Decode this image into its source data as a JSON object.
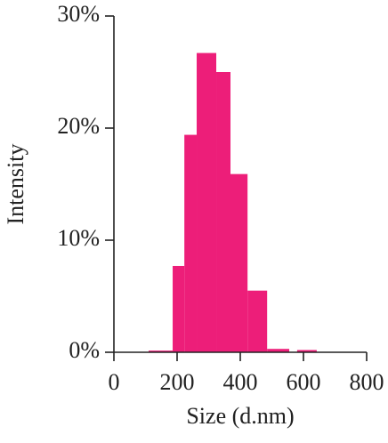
{
  "chart_data": {
    "type": "histogram",
    "xlabel": "Size (d.nm)",
    "ylabel": "Intensity",
    "bins": [
      110,
      186,
      223,
      262,
      324,
      369,
      423,
      485,
      555,
      580,
      642
    ],
    "counts": [
      0.15,
      7.7,
      19.4,
      26.7,
      25,
      15.9,
      5.5,
      0.3,
      0,
      0.2
    ],
    "color": "#ed1e79",
    "xlim": [
      0,
      800
    ],
    "xticks": [
      0,
      200,
      400,
      600,
      800
    ],
    "ylim": [
      0,
      30
    ],
    "yticks": [
      {
        "value": 0,
        "label": "0%"
      },
      {
        "value": 10,
        "label": "10%"
      },
      {
        "value": 20,
        "label": "20%"
      },
      {
        "value": 30,
        "label": "30%"
      }
    ]
  }
}
